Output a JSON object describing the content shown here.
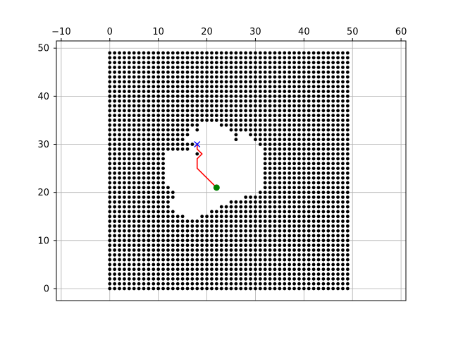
{
  "chart_data": {
    "type": "scatter",
    "title": "",
    "xlabel": "",
    "ylabel": "",
    "xlim": [
      -11,
      61
    ],
    "ylim": [
      51.5,
      -2.5
    ],
    "y_axis_inverted": true,
    "x_axis_position": "top",
    "grid": true,
    "xticks": [
      -10,
      0,
      10,
      20,
      30,
      40,
      50,
      60
    ],
    "yticks": [
      0,
      10,
      20,
      30,
      40,
      50
    ],
    "obstacle_grid": {
      "x_range": [
        0,
        49
      ],
      "y_range": [
        0,
        49
      ],
      "step": 1,
      "marker": "point",
      "color": "#000000",
      "free_region_spans_by_row": {
        "15": [
          [
            16,
            18
          ]
        ],
        "16": [
          [
            14,
            20
          ]
        ],
        "17": [
          [
            13,
            22
          ]
        ],
        "18": [
          [
            13,
            24
          ]
        ],
        "19": [
          [
            14,
            27
          ]
        ],
        "20": [
          [
            14,
            30
          ]
        ],
        "21": [
          [
            13,
            31
          ]
        ],
        "22": [
          [
            12,
            31
          ]
        ],
        "23": [
          [
            12,
            31
          ]
        ],
        "24": [
          [
            12,
            31
          ]
        ],
        "25": [
          [
            12,
            31
          ]
        ],
        "26": [
          [
            12,
            31
          ]
        ],
        "27": [
          [
            12,
            31
          ]
        ],
        "28": [
          [
            12,
            17
          ],
          [
            19,
            31
          ]
        ],
        "29": [
          [
            17,
            31
          ]
        ],
        "30": [
          [
            18,
            30
          ]
        ],
        "31": [
          [
            16,
            25
          ],
          [
            27,
            29
          ]
        ],
        "32": [
          [
            17,
            25
          ],
          [
            27,
            28
          ]
        ],
        "33": [
          [
            17,
            17
          ],
          [
            19,
            24
          ]
        ],
        "34": [
          [
            19,
            22
          ]
        ]
      }
    },
    "series": [
      {
        "type": "line",
        "color": "#ff0000",
        "points": [
          [
            22,
            21
          ],
          [
            18,
            25
          ],
          [
            18,
            27
          ],
          [
            19,
            28
          ],
          [
            18,
            29
          ],
          [
            18,
            30
          ]
        ]
      },
      {
        "type": "marker",
        "marker": "circle",
        "color": "#008000",
        "points": [
          [
            22,
            21
          ]
        ]
      },
      {
        "type": "marker",
        "marker": "x",
        "color": "#0000ff",
        "points": [
          [
            18,
            30
          ]
        ]
      }
    ]
  }
}
